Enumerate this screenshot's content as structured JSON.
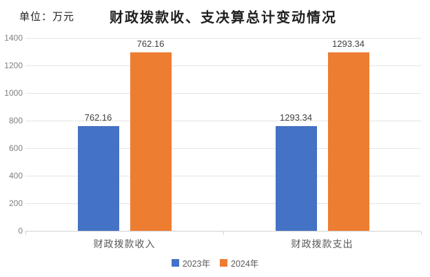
{
  "header": {
    "unit_label": "单位：万元",
    "title": "财政拨款收、支决算总计变动情况"
  },
  "chart_data": {
    "type": "bar",
    "title": "财政拨款收、支决算总计变动情况",
    "unit": "万元",
    "categories": [
      "财政拨款收入",
      "财政拨款支出"
    ],
    "series": [
      {
        "name": "2023年",
        "color": "#4472C4",
        "values": [
          762.16,
          762.16
        ]
      },
      {
        "name": "2024年",
        "color": "#ED7D31",
        "values": [
          1293.34,
          1293.34
        ]
      }
    ],
    "data_labels": [
      [
        "762.16",
        "1293.34"
      ],
      [
        "762.16",
        "1293.34"
      ]
    ],
    "ylim": [
      0,
      1400
    ],
    "ytick_step": 200,
    "ytick_labels": [
      "0",
      "200",
      "400",
      "600",
      "800",
      "1000",
      "1200",
      "1400"
    ],
    "grid": true,
    "legend_position": "bottom"
  },
  "colors": {
    "series_2023": "#4472C4",
    "series_2024": "#ED7D31",
    "gridline": "#E4E4E4",
    "axis_line": "#D2D2D2",
    "axis_text": "#7F7F7F",
    "label_text": "#404040",
    "category_text": "#595959",
    "title_text": "#1F1F1F",
    "background": "#FFFFFF"
  }
}
